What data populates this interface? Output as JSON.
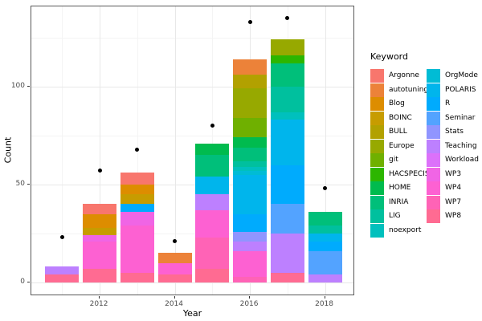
{
  "figure": {
    "y_axis_title": "Count",
    "x_axis_title": "Year",
    "legend_title": "Keyword"
  },
  "colors": {
    "background": "#ffffff",
    "panel_border": "#595959",
    "grid_major": "#e8e8e8",
    "grid_minor": "#f4f4f4",
    "axis_text": "#4d4d4d",
    "point": "#000000"
  },
  "chart_data": {
    "type": "bar",
    "stacked": true,
    "xlabel": "Year",
    "ylabel": "Count",
    "legend_title": "Keyword",
    "legend_position": "right",
    "grid": true,
    "x": [
      2011,
      2012,
      2013,
      2014,
      2015,
      2016,
      2017,
      2018
    ],
    "x_major_ticks": [
      2012,
      2014,
      2016,
      2018
    ],
    "x_minor_gridlines": [
      2011,
      2013,
      2015,
      2017
    ],
    "y_major_ticks": [
      0,
      50,
      100
    ],
    "y_minor_gridlines": [
      25,
      75,
      125
    ],
    "ylim": [
      -7,
      141
    ],
    "bar_totals": [
      8,
      40,
      56,
      15,
      71,
      114,
      124,
      36
    ],
    "points": {
      "shape": "circle",
      "color": "#000000",
      "values": [
        23,
        57,
        68,
        21,
        80,
        133,
        135,
        48
      ]
    },
    "series": [
      {
        "name": "Argonne",
        "color": "#F8766D",
        "values": [
          0,
          5,
          6,
          0,
          0,
          0,
          0,
          0
        ]
      },
      {
        "name": "autotuning",
        "color": "#EC8239",
        "values": [
          0,
          0,
          0,
          5,
          0,
          8,
          0,
          0
        ]
      },
      {
        "name": "Blog",
        "color": "#DD8D00",
        "values": [
          0,
          7,
          5,
          0,
          0,
          0,
          0,
          0
        ]
      },
      {
        "name": "BOINC",
        "color": "#C79C00",
        "values": [
          0,
          4,
          5,
          0,
          0,
          0,
          0,
          0
        ]
      },
      {
        "name": "BULL",
        "color": "#B2A100",
        "values": [
          0,
          0,
          0,
          0,
          0,
          7,
          0,
          0
        ]
      },
      {
        "name": "Europe",
        "color": "#97A900",
        "values": [
          0,
          0,
          0,
          0,
          0,
          15,
          8,
          0
        ]
      },
      {
        "name": "git",
        "color": "#6FB000",
        "values": [
          0,
          0,
          0,
          0,
          0,
          10,
          0,
          0
        ]
      },
      {
        "name": "HACSPECIS",
        "color": "#2CB600",
        "values": [
          0,
          0,
          0,
          0,
          0,
          0,
          4,
          0
        ]
      },
      {
        "name": "HOME",
        "color": "#00BB4E",
        "values": [
          0,
          0,
          0,
          0,
          6,
          5,
          0,
          0
        ]
      },
      {
        "name": "INRIA",
        "color": "#00BF7A",
        "values": [
          0,
          0,
          0,
          0,
          11,
          7,
          12,
          7
        ]
      },
      {
        "name": "LIG",
        "color": "#00C09E",
        "values": [
          0,
          0,
          0,
          0,
          0,
          3,
          13,
          4
        ]
      },
      {
        "name": "noexport",
        "color": "#00C0BD",
        "values": [
          0,
          0,
          0,
          0,
          0,
          2,
          4,
          0
        ]
      },
      {
        "name": "OrgMode",
        "color": "#00BCD5",
        "values": [
          0,
          0,
          0,
          0,
          0,
          2,
          0,
          0
        ]
      },
      {
        "name": "POLARIS",
        "color": "#00B5EC",
        "values": [
          0,
          0,
          0,
          0,
          9,
          20,
          23,
          4
        ]
      },
      {
        "name": "R",
        "color": "#00ABFD",
        "values": [
          0,
          0,
          4,
          0,
          0,
          9,
          20,
          5
        ]
      },
      {
        "name": "Seminar",
        "color": "#53A3FF",
        "values": [
          0,
          0,
          0,
          0,
          0,
          0,
          15,
          12
        ]
      },
      {
        "name": "Stats",
        "color": "#9095FF",
        "values": [
          0,
          0,
          0,
          0,
          0,
          5,
          0,
          0
        ]
      },
      {
        "name": "Teaching",
        "color": "#BD80FF",
        "values": [
          4,
          0,
          0,
          0,
          8,
          5,
          20,
          4
        ]
      },
      {
        "name": "Workload",
        "color": "#DC71FA",
        "values": [
          0,
          0,
          0,
          0,
          0,
          0,
          0,
          0
        ]
      },
      {
        "name": "WP3",
        "color": "#F065E5",
        "values": [
          0,
          3,
          7,
          0,
          0,
          0,
          0,
          0
        ]
      },
      {
        "name": "WP4",
        "color": "#FD61D2",
        "values": [
          0,
          14,
          24,
          6,
          14,
          13,
          0,
          0
        ]
      },
      {
        "name": "WP7",
        "color": "#FF63B6",
        "values": [
          0,
          0,
          0,
          0,
          16,
          3,
          0,
          0
        ]
      },
      {
        "name": "WP8",
        "color": "#FF6B92",
        "values": [
          4,
          7,
          5,
          4,
          7,
          0,
          5,
          0
        ]
      }
    ],
    "legend_columns": [
      12,
      11
    ]
  }
}
